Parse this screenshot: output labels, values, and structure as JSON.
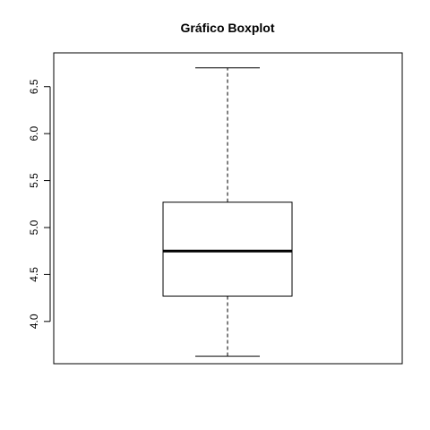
{
  "chart_data": {
    "type": "boxplot",
    "title": "Gráfico Boxplot",
    "xlabel": "",
    "ylabel": "",
    "ylim": [
      3.55,
      6.86
    ],
    "yticks": [
      4.0,
      4.5,
      5.0,
      5.5,
      6.0,
      6.5
    ],
    "ytick_labels": [
      "4.0",
      "4.5",
      "5.0",
      "5.5",
      "6.0",
      "6.5"
    ],
    "grid": false,
    "box": {
      "whisker_low": 3.63,
      "q1": 4.27,
      "median": 4.75,
      "q3": 5.27,
      "whisker_high": 6.7
    },
    "colors": {
      "box_fill": "#ffffff",
      "stroke": "#000000"
    }
  }
}
